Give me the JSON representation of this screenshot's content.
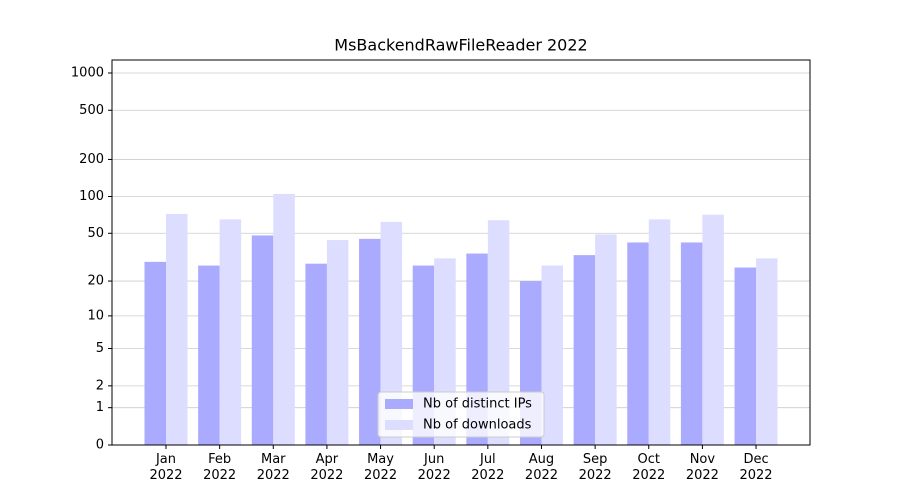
{
  "chart_data": {
    "type": "bar",
    "title": "MsBackendRawFileReader 2022",
    "categories": [
      "Jan\n2022",
      "Feb\n2022",
      "Mar\n2022",
      "Apr\n2022",
      "May\n2022",
      "Jun\n2022",
      "Jul\n2022",
      "Aug\n2022",
      "Sep\n2022",
      "Oct\n2022",
      "Nov\n2022",
      "Dec\n2022"
    ],
    "series": [
      {
        "name": "Nb of distinct IPs",
        "color": "#aaaaff",
        "values": [
          29,
          27,
          48,
          28,
          45,
          27,
          34,
          20,
          33,
          42,
          42,
          26
        ]
      },
      {
        "name": "Nb of downloads",
        "color": "#ddddff",
        "values": [
          72,
          65,
          105,
          44,
          62,
          31,
          64,
          27,
          49,
          65,
          71,
          31
        ]
      }
    ],
    "yscale": "log1p",
    "ylim": [
      0,
      1273
    ],
    "yticks": [
      0,
      1,
      2,
      5,
      10,
      20,
      50,
      100,
      200,
      500,
      1000
    ],
    "grid": true,
    "legend": "lower center"
  }
}
